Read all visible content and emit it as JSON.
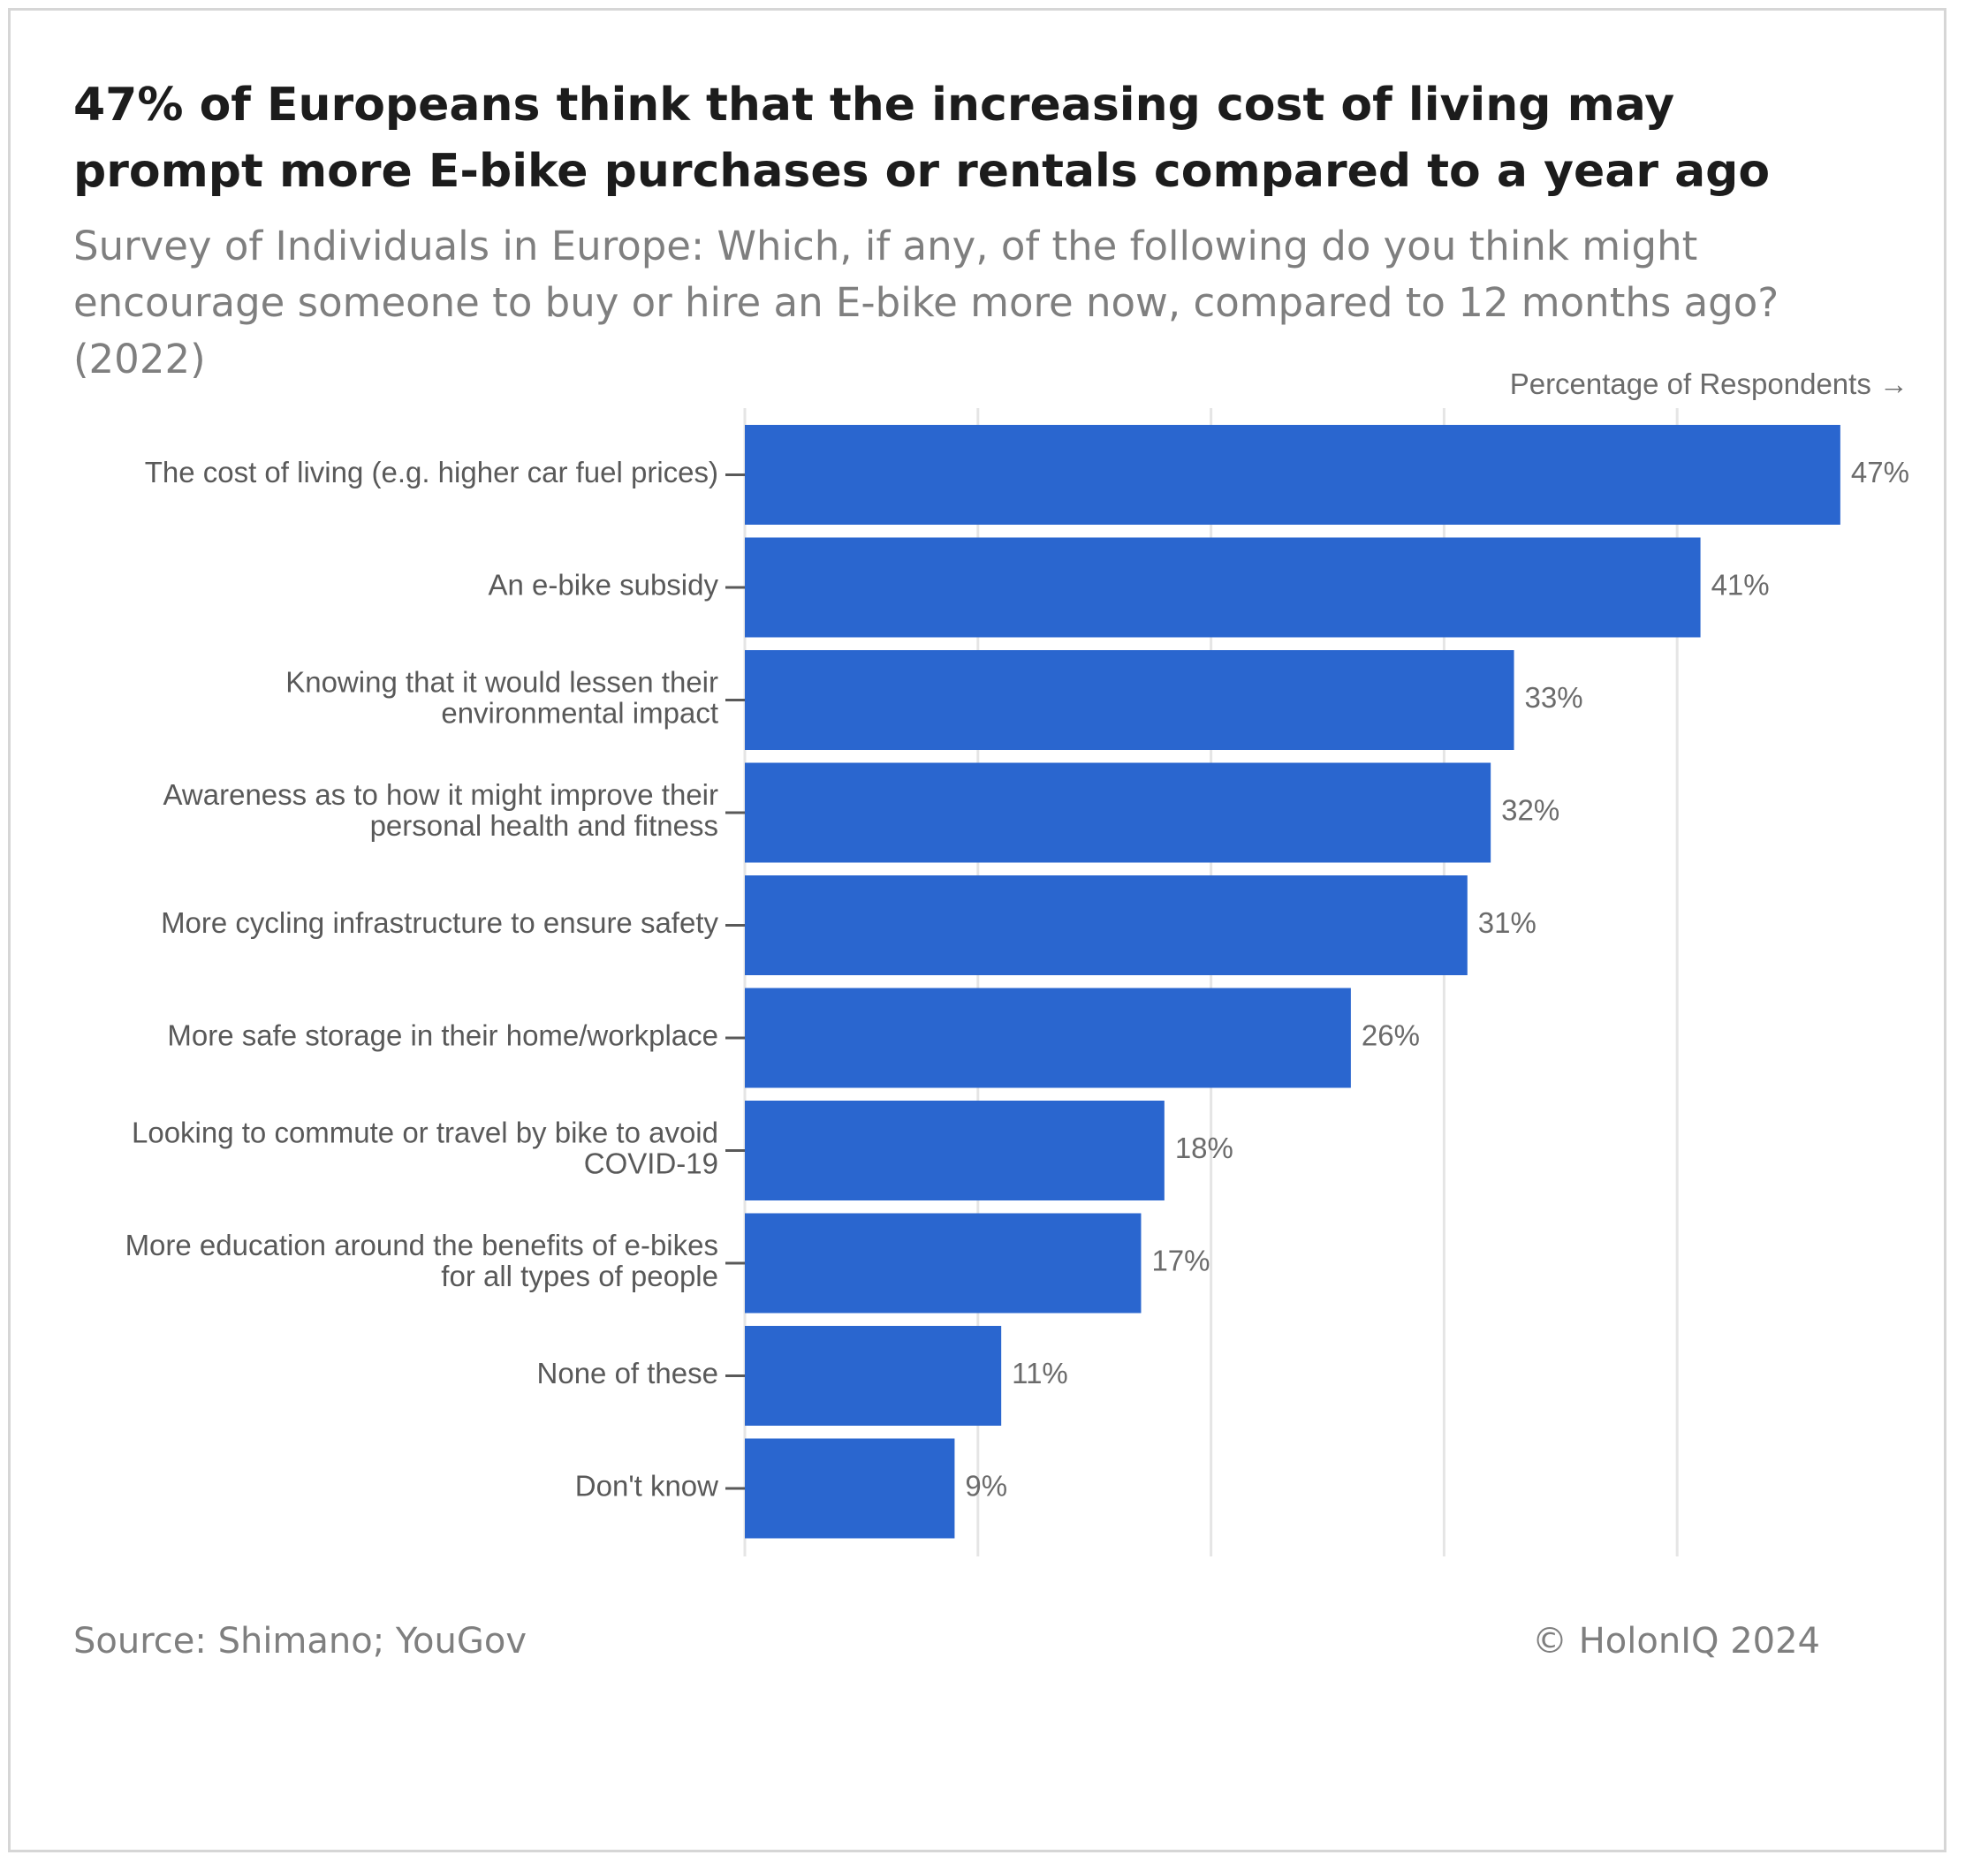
{
  "header": {
    "title": "47% of Europeans think that the increasing cost of living may prompt more E-bike purchases or rentals compared to a year ago",
    "subtitle": "Survey of Individuals in Europe: Which, if any, of the following do you think might encourage someone to buy or hire an E-bike more now, compared to 12 months ago? (2022)"
  },
  "footer": {
    "source": "Source: Shimano; YouGov",
    "copyright": "© HolonIQ 2024"
  },
  "colors": {
    "bar": "#2a66cf",
    "gridline": "#e5e5e5",
    "label": "#595959",
    "value_label": "#6b6b6b"
  },
  "chart_data": {
    "type": "bar",
    "orientation": "horizontal",
    "title": "47% of Europeans think that the increasing cost of living may prompt more E-bike purchases or rentals compared to a year ago",
    "xlabel": "Percentage of Respondents →",
    "ylabel": "",
    "xlim": [
      0,
      50
    ],
    "grid": true,
    "legend": "none",
    "unit": "%",
    "categories": [
      [
        "The cost of living (e.g. higher car fuel prices)"
      ],
      [
        "An e-bike subsidy"
      ],
      [
        "Knowing that it would lessen their",
        "environmental impact"
      ],
      [
        "Awareness as to how it might improve their",
        "personal health and fitness"
      ],
      [
        "More cycling infrastructure to ensure safety"
      ],
      [
        "More safe storage in their home/workplace"
      ],
      [
        "Looking to commute or travel by bike to avoid",
        "COVID-19"
      ],
      [
        "More education around the benefits of e-bikes",
        "for all types of people"
      ],
      [
        "None of these"
      ],
      [
        "Don't know"
      ]
    ],
    "values": [
      47,
      41,
      33,
      32,
      31,
      26,
      18,
      17,
      11,
      9
    ],
    "value_labels": [
      "47%",
      "41%",
      "33%",
      "32%",
      "31%",
      "26%",
      "18%",
      "17%",
      "11%",
      "9%"
    ]
  }
}
